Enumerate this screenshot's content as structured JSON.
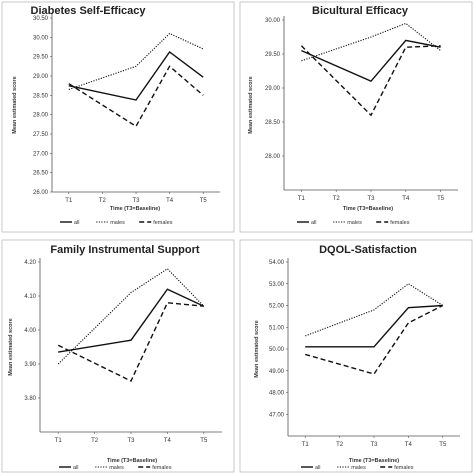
{
  "chart_data": [
    {
      "type": "line",
      "title": "Diabetes Self-Efficacy",
      "xlabel": "Time (T3=Baseline)",
      "ylabel": "Mean estimated score",
      "categories": [
        "T1",
        "T2",
        "T3",
        "T4",
        "T5"
      ],
      "ylim": [
        26.0,
        30.5
      ],
      "yticks": [
        "26.00",
        "26.50",
        "27.00",
        "27.50",
        "28.00",
        "28.50",
        "29.00",
        "29.50",
        "30.00",
        "30.50"
      ],
      "legend_position": "bottom",
      "series": [
        {
          "name": "all",
          "style": "solid",
          "values": [
            28.75,
            null,
            28.38,
            29.62,
            28.97
          ]
        },
        {
          "name": "males",
          "style": "dotted",
          "values": [
            28.65,
            null,
            29.25,
            30.1,
            29.7
          ]
        },
        {
          "name": "females",
          "style": "dashed",
          "values": [
            28.8,
            null,
            27.7,
            29.25,
            28.5
          ]
        }
      ]
    },
    {
      "type": "line",
      "title": "Bicultural Efficacy",
      "xlabel": "Time (T3=Baseline)",
      "ylabel": "Mean estimated score",
      "categories": [
        "T1",
        "T2",
        "T3",
        "T4",
        "T5"
      ],
      "ylim": [
        27.5,
        30.0
      ],
      "yticks": [
        "28.00",
        "28.50",
        "29.00",
        "29.50",
        "30.00"
      ],
      "legend_position": "bottom",
      "series": [
        {
          "name": "all",
          "style": "solid",
          "values": [
            29.55,
            null,
            29.1,
            29.7,
            29.6
          ]
        },
        {
          "name": "males",
          "style": "dotted",
          "values": [
            29.4,
            null,
            29.75,
            29.95,
            29.55
          ]
        },
        {
          "name": "females",
          "style": "dashed",
          "values": [
            29.62,
            null,
            28.6,
            29.6,
            29.62
          ]
        }
      ]
    },
    {
      "type": "line",
      "title": "Family Instrumental Support",
      "xlabel": "Time (T3=Baseline)",
      "ylabel": "Mean estimated score",
      "categories": [
        "T1",
        "T2",
        "T3",
        "T4",
        "T5"
      ],
      "ylim": [
        3.7,
        4.2
      ],
      "yticks": [
        "3.80",
        "3.90",
        "4.00",
        "4.10",
        "4.20"
      ],
      "legend_position": "bottom",
      "series": [
        {
          "name": "all",
          "style": "solid",
          "values": [
            3.935,
            null,
            3.97,
            4.12,
            4.07
          ]
        },
        {
          "name": "males",
          "style": "dotted",
          "values": [
            3.9,
            null,
            4.11,
            4.18,
            4.07
          ]
        },
        {
          "name": "females",
          "style": "dashed",
          "values": [
            3.955,
            null,
            3.85,
            4.08,
            4.07
          ]
        }
      ]
    },
    {
      "type": "line",
      "title": "DQOL-Satisfaction",
      "xlabel": "Time (T3=Baseline)",
      "ylabel": "Mean estimated score",
      "categories": [
        "T1",
        "T2",
        "T3",
        "T4",
        "T5"
      ],
      "ylim": [
        46.0,
        54.0
      ],
      "yticks": [
        "47.00",
        "48.00",
        "49.00",
        "50.00",
        "51.00",
        "52.00",
        "53.00",
        "54.00"
      ],
      "legend_position": "bottom",
      "series": [
        {
          "name": "all",
          "style": "solid",
          "values": [
            50.1,
            null,
            50.1,
            51.9,
            52.0
          ]
        },
        {
          "name": "males",
          "style": "dotted",
          "values": [
            50.6,
            null,
            51.8,
            53.0,
            52.0
          ]
        },
        {
          "name": "females",
          "style": "dashed",
          "values": [
            49.75,
            null,
            48.85,
            51.2,
            52.0
          ]
        }
      ]
    }
  ]
}
